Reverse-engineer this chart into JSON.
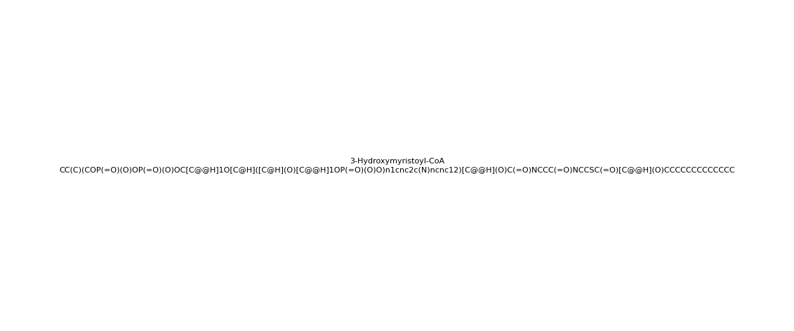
{
  "smiles": "CC(C)(COP(=O)(O)OP(=O)(O)OC[C@@H]1O[C@H]([C@H](O)[C@@H]1OP(=O)(O)O)n1cnc2c(N)ncnc12)[C@@H](O)C(=O)NCCC(=O)NCCSC(=O)[C@@H](O)CCCCCCCCCCCCC",
  "title": "",
  "bg_color": "#ffffff",
  "line_color": "#000000",
  "figsize": [
    11.31,
    4.72
  ],
  "dpi": 100
}
